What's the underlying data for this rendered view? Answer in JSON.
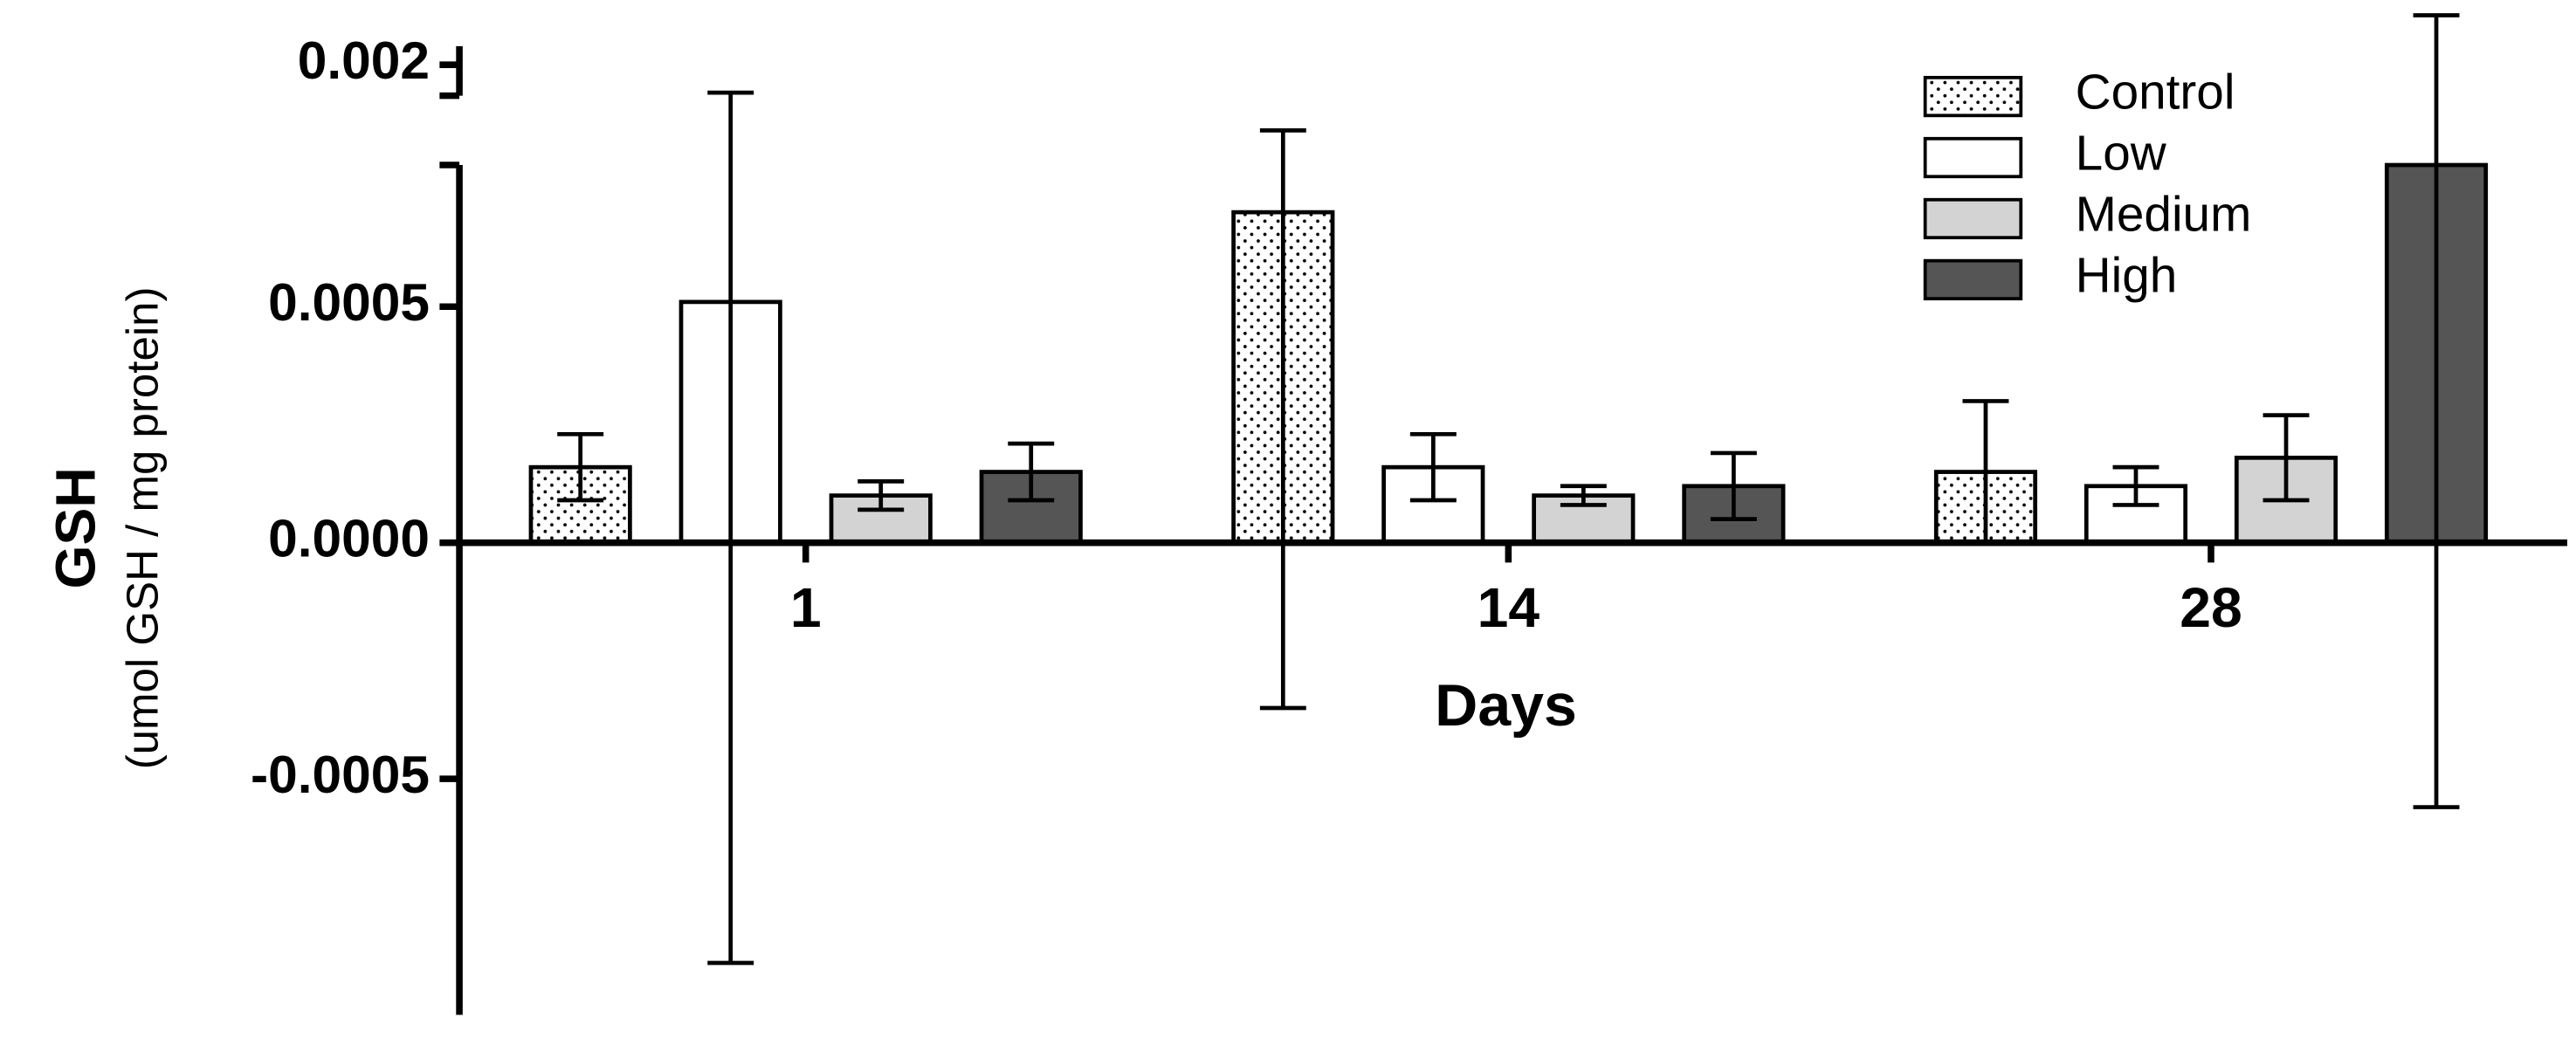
{
  "chart_data": {
    "type": "bar",
    "y_title": "GSH",
    "y_subtitle": "(umol GSH / mg protein)",
    "x_title": "Days",
    "categories": [
      "1",
      "14",
      "28"
    ],
    "series": [
      {
        "name": "Control",
        "color": "#ffffff",
        "pattern": "dots",
        "values": [
          0.00016,
          0.0007,
          0.00015
        ],
        "errors": [
          7e-05,
          0.00105,
          0.00015
        ]
      },
      {
        "name": "Low",
        "color": "#ffffff",
        "values": [
          0.00051,
          0.00016,
          0.00012
        ],
        "errors": [
          0.0014,
          7e-05,
          4e-05
        ]
      },
      {
        "name": "Medium",
        "color": "#d3d3d3",
        "values": [
          0.0001,
          0.0001,
          0.00018
        ],
        "errors": [
          3e-05,
          2e-05,
          9e-05
        ]
      },
      {
        "name": "High",
        "color": "#555555",
        "values": [
          0.00015,
          0.00012,
          0.0008
        ],
        "errors": [
          6e-05,
          7e-05,
          0.00136
        ]
      }
    ],
    "ylim": [
      -0.001,
      0.0008
    ],
    "yticks": [
      -0.0005,
      {
        "value": 0,
        "label": "0.0000"
      },
      0.0005
    ],
    "ylim_upper": [
      0.0019,
      0.00206
    ],
    "yticks_upper": [
      0.002
    ],
    "legend": "top-right"
  }
}
